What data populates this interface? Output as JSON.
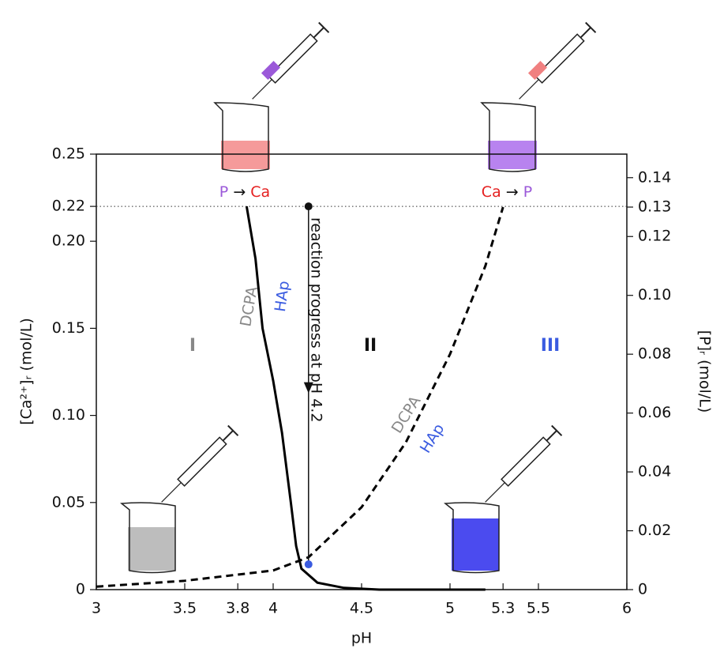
{
  "chart_data": {
    "type": "line",
    "x_label": "pH",
    "y_label": "[Ca²⁺]ᵣ (mol/L)",
    "y2_label": "[P]ᵣ (mol/L)",
    "xlim": [
      3,
      6
    ],
    "xticks": [
      3,
      3.5,
      3.8,
      4,
      4.5,
      5,
      5.3,
      5.5,
      6
    ],
    "ylim": [
      0,
      0.25
    ],
    "yticks": [
      0,
      0.05,
      {
        "value": 0.1,
        "label": "0.10"
      },
      0.15,
      {
        "value": 0.2,
        "label": "0.20"
      },
      0.22,
      0.25
    ],
    "y2lim": [
      0,
      0.148
    ],
    "y2ticks": [
      0,
      0.02,
      0.04,
      0.06,
      0.08,
      {
        "value": 0.1,
        "label": "0.10"
      },
      0.12,
      0.13,
      0.14
    ],
    "reference_line": 0.22,
    "reaction_ph": 4.2,
    "reaction_end": 0.0145,
    "series": [
      {
        "color": "#000000",
        "style": "solid",
        "axis": "y",
        "x": [
          3.85,
          3.9,
          3.94,
          4.0,
          4.05,
          4.1,
          4.13,
          4.16,
          4.25,
          4.4,
          4.6,
          5.2
        ],
        "values": [
          0.22,
          0.19,
          0.15,
          0.12,
          0.09,
          0.05,
          0.025,
          0.012,
          0.004,
          0.001,
          0,
          0
        ]
      },
      {
        "color": "#000000",
        "style": "dashed",
        "axis": "y2",
        "x": [
          3.0,
          3.5,
          4.0,
          4.2,
          4.5,
          4.75,
          5.0,
          5.2,
          5.3
        ],
        "values": [
          0.001,
          0.003,
          0.0065,
          0.011,
          0.028,
          0.05,
          0.08,
          0.11,
          0.13
        ]
      }
    ],
    "annotations": {
      "left_transition": [
        "P",
        "→",
        "Ca"
      ],
      "right_transition": [
        "Ca",
        "→",
        "P"
      ],
      "arrow_label": "reaction progress at pH 4.2",
      "ca_curve_labels": [
        "DCPA",
        "HAp"
      ],
      "p_curve_labels": [
        "DCPA",
        "HAp"
      ],
      "regions": [
        "I",
        "II",
        "III"
      ]
    }
  }
}
